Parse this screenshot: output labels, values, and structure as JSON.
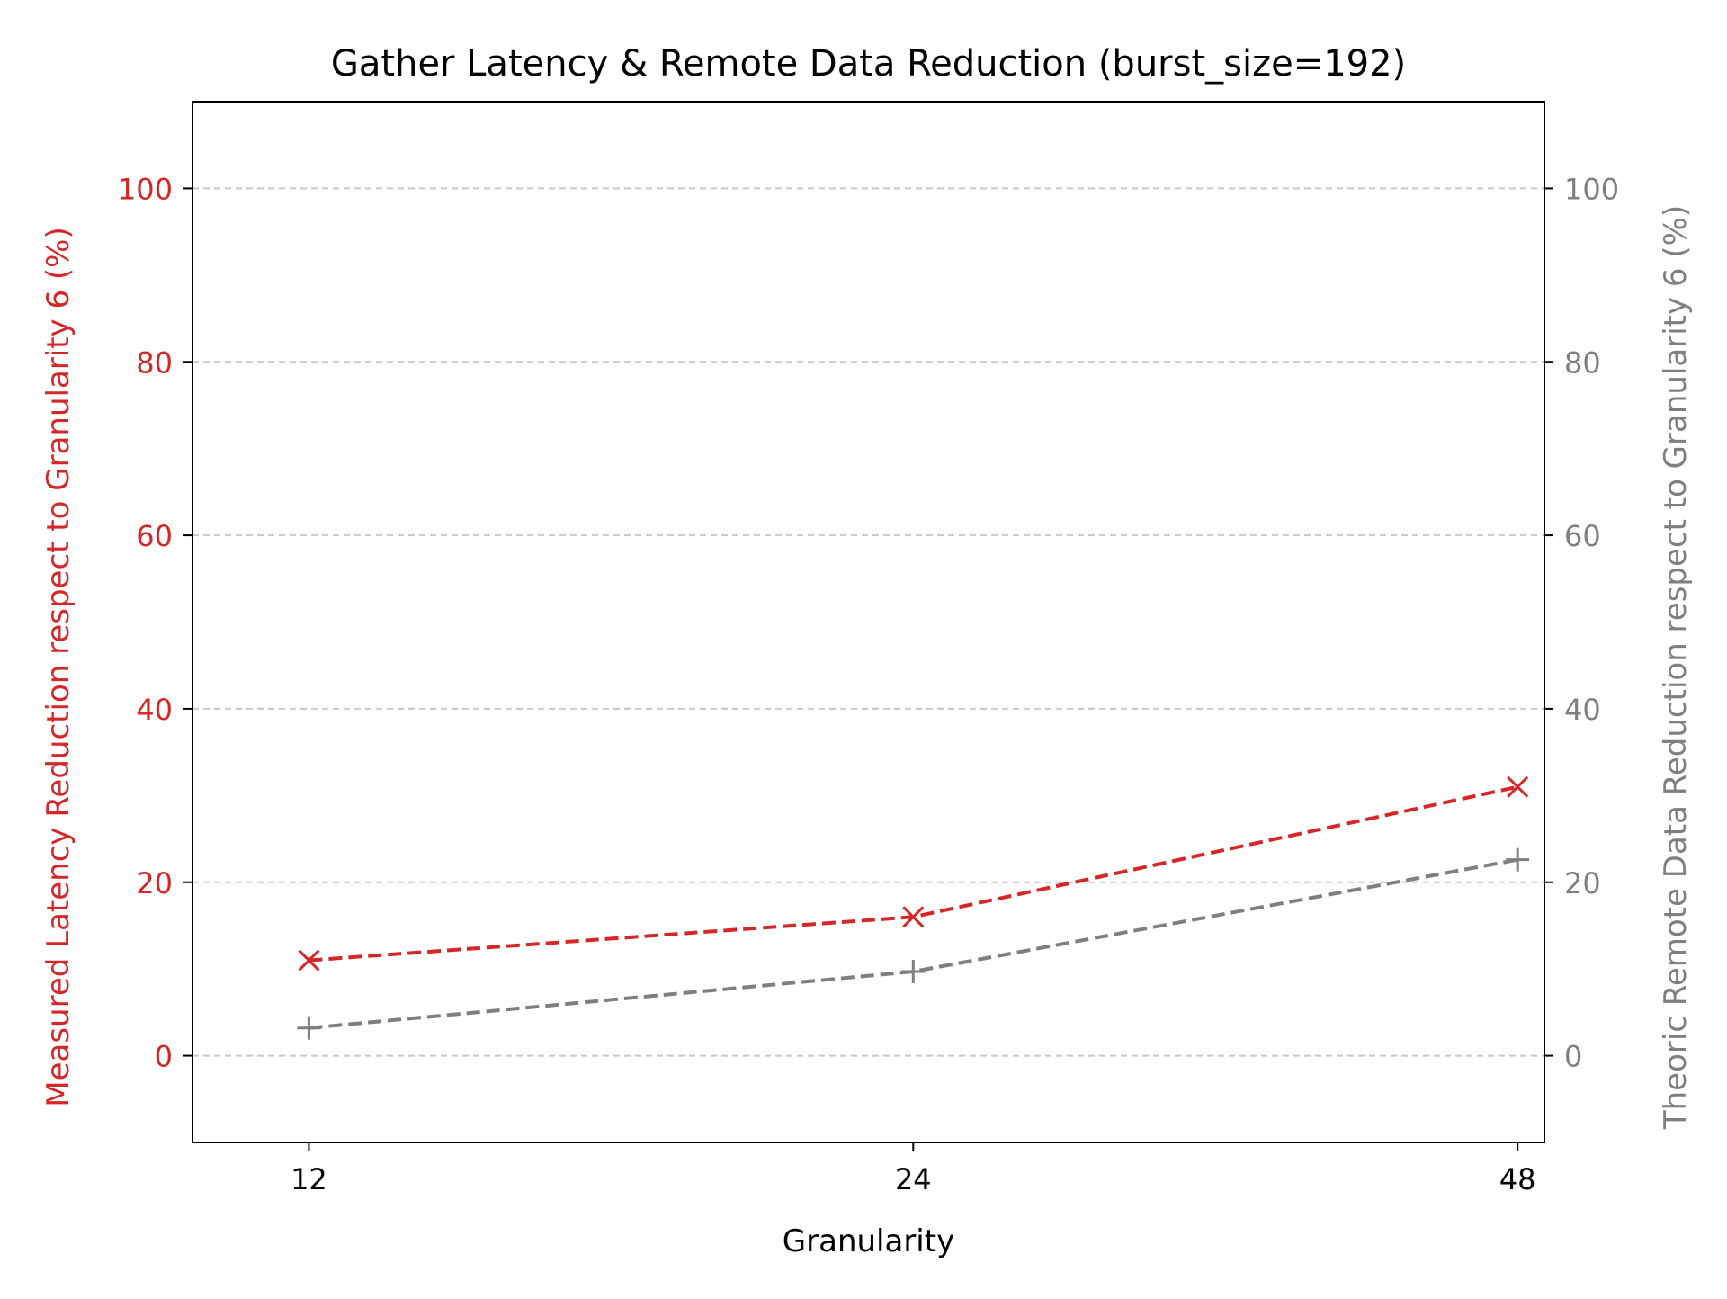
{
  "chart_data": {
    "type": "line",
    "title": "Gather Latency & Remote Data Reduction (burst_size=192)",
    "xlabel": "Granularity",
    "ylabel_left": "Measured Latency Reduction respect to Granularity 6 (%)",
    "ylabel_right": "Theoric Remote Data Reduction respect to Granularity 6 (%)",
    "x": [
      12,
      24,
      48
    ],
    "x_ticks": [
      "12",
      "24",
      "48"
    ],
    "ylim": [
      -10,
      110
    ],
    "y_ticks": [
      0,
      20,
      40,
      60,
      80,
      100
    ],
    "grid": "horizontal dashed",
    "series": [
      {
        "axis": "left",
        "values": [
          11,
          16,
          31
        ],
        "color": "#d62728",
        "linestyle": "dashed",
        "marker": "x"
      },
      {
        "axis": "right",
        "values": [
          3.2,
          9.7,
          22.6
        ],
        "color": "#7f7f7f",
        "linestyle": "dashed",
        "marker": "+"
      }
    ],
    "colors": {
      "left_axis": "#d62728",
      "right_axis": "#7f7f7f",
      "grid": "#c8c8c8",
      "frame": "#000000"
    }
  }
}
